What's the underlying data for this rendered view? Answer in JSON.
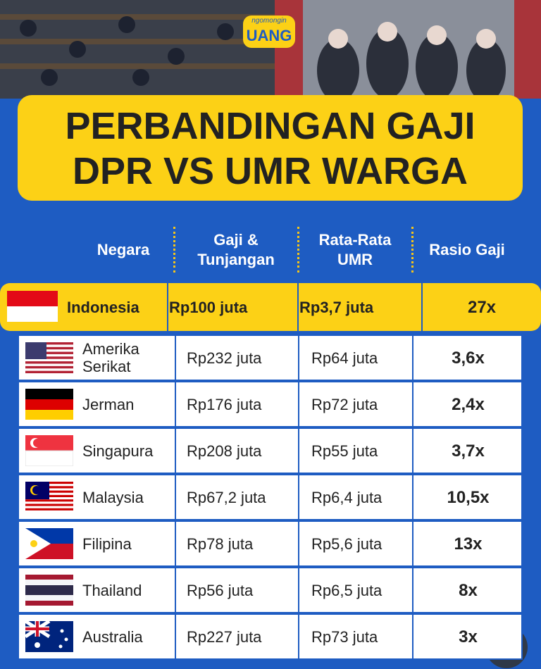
{
  "header": {
    "logo": [
      "ngomongin",
      "UANG"
    ],
    "title": [
      "PERBANDINGAN GAJI",
      "DPR VS UMR WARGA"
    ]
  },
  "table": {
    "columns": [
      "Negara",
      "Gaji & Tunjangan",
      "Rata-Rata UMR",
      "Rasio Gaji"
    ],
    "rows": [
      [
        "Indonesia",
        "Rp100 juta",
        "Rp3,7 juta",
        "27x"
      ],
      [
        "Amerika Serikat",
        "Rp232 juta",
        "Rp64 juta",
        "3,6x"
      ],
      [
        "Jerman",
        "Rp176 juta",
        "Rp72 juta",
        "2,4x"
      ],
      [
        "Singapura",
        "Rp208 juta",
        "Rp55 juta",
        "3,7x"
      ],
      [
        "Malaysia",
        "Rp67,2 juta",
        "Rp6,4 juta",
        "10,5x"
      ],
      [
        "Filipina",
        "Rp78 juta",
        "Rp5,6 juta",
        "13x"
      ],
      [
        "Thailand",
        "Rp56 juta",
        "Rp6,5 juta",
        "8x"
      ],
      [
        "Australia",
        "Rp227 juta",
        "Rp73 juta",
        "3x"
      ]
    ]
  }
}
